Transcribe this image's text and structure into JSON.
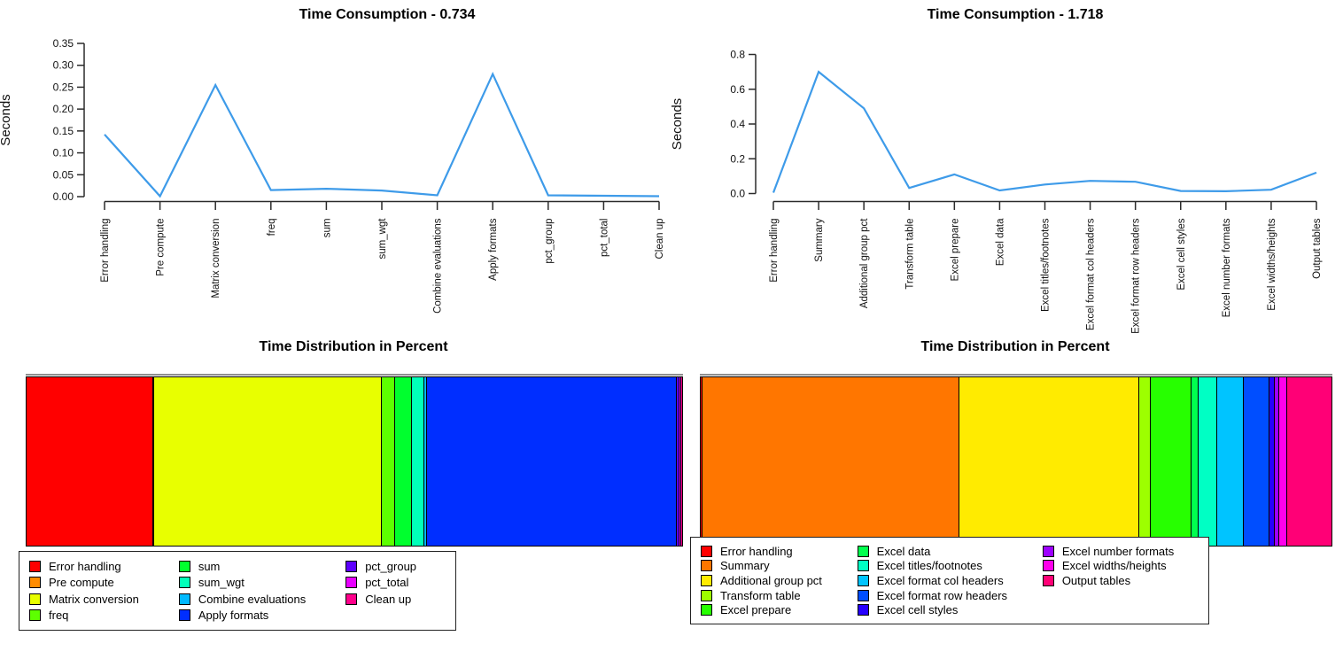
{
  "chart_data": [
    {
      "type": "line",
      "position": "top-left",
      "title": "Time Consumption - 0.734",
      "total_seconds": 0.734,
      "ylabel": "Seconds",
      "line_color": "#3E9BE9",
      "grid": false,
      "ylim": [
        0,
        0.35
      ],
      "yticks": [
        "0.00",
        "0.05",
        "0.10",
        "0.15",
        "0.20",
        "0.25",
        "0.30",
        "0.35"
      ],
      "categories": [
        "Error handling",
        "Pre compute",
        "Matrix conversion",
        "freq",
        "sum",
        "sum_wgt",
        "Combine evaluations",
        "Apply formats",
        "pct_group",
        "pct_total",
        "Clean up"
      ],
      "values": [
        0.142,
        0.001,
        0.255,
        0.015,
        0.018,
        0.014,
        0.003,
        0.28,
        0.003,
        0.002,
        0.001
      ]
    },
    {
      "type": "line",
      "position": "top-right",
      "title": "Time Consumption - 1.718",
      "total_seconds": 1.718,
      "ylabel": "Seconds",
      "line_color": "#3E9BE9",
      "grid": false,
      "ylim": [
        0,
        0.8
      ],
      "yticks": [
        "0.0",
        "0.2",
        "0.4",
        "0.6",
        "0.8"
      ],
      "categories": [
        "Error handling",
        "Summary",
        "Additional group pct",
        "Transform table",
        "Excel prepare",
        "Excel data",
        "Excel titles/footnotes",
        "Excel format col headers",
        "Excel format row headers",
        "Excel cell styles",
        "Excel number formats",
        "Excel widths/heights",
        "Output tables"
      ],
      "values": [
        0.005,
        0.7,
        0.49,
        0.032,
        0.11,
        0.018,
        0.052,
        0.073,
        0.068,
        0.015,
        0.013,
        0.022,
        0.12
      ]
    },
    {
      "type": "stacked_bar",
      "position": "bottom-left",
      "title": "Time Distribution in Percent",
      "legend_position": "bottom-left",
      "legend_columns": 3,
      "segments": [
        {
          "label": "Error handling",
          "color": "#FF0000",
          "percent": 19.35
        },
        {
          "label": "Pre compute",
          "color": "#FF8B00",
          "percent": 0.14
        },
        {
          "label": "Matrix conversion",
          "color": "#E8FF00",
          "percent": 34.74
        },
        {
          "label": "freq",
          "color": "#5DFF00",
          "percent": 2.04
        },
        {
          "label": "sum",
          "color": "#00FF2E",
          "percent": 2.45
        },
        {
          "label": "sum_wgt",
          "color": "#00FFB9",
          "percent": 1.91
        },
        {
          "label": "Combine evaluations",
          "color": "#00B9FF",
          "percent": 0.41
        },
        {
          "label": "Apply formats",
          "color": "#002EFF",
          "percent": 38.15
        },
        {
          "label": "pct_group",
          "color": "#5D00FF",
          "percent": 0.41
        },
        {
          "label": "pct_total",
          "color": "#E800FF",
          "percent": 0.27
        },
        {
          "label": "Clean up",
          "color": "#FF008B",
          "percent": 0.14
        }
      ]
    },
    {
      "type": "stacked_bar",
      "position": "bottom-right",
      "title": "Time Distribution in Percent",
      "legend_position": "bottom-left-overlapping",
      "legend_columns": 3,
      "segments": [
        {
          "label": "Error handling",
          "color": "#FF0000",
          "percent": 0.29
        },
        {
          "label": "Summary",
          "color": "#FF7600",
          "percent": 40.75
        },
        {
          "label": "Additional group pct",
          "color": "#FFEB00",
          "percent": 28.52
        },
        {
          "label": "Transform table",
          "color": "#9DFF00",
          "percent": 1.86
        },
        {
          "label": "Excel prepare",
          "color": "#27FF00",
          "percent": 6.4
        },
        {
          "label": "Excel data",
          "color": "#00FF4E",
          "percent": 1.05
        },
        {
          "label": "Excel titles/footnotes",
          "color": "#00FFC4",
          "percent": 3.03
        },
        {
          "label": "Excel format col headers",
          "color": "#00C4FF",
          "percent": 4.25
        },
        {
          "label": "Excel format row headers",
          "color": "#004EFF",
          "percent": 3.96
        },
        {
          "label": "Excel cell styles",
          "color": "#2700FF",
          "percent": 0.87
        },
        {
          "label": "Excel number formats",
          "color": "#9D00FF",
          "percent": 0.76
        },
        {
          "label": "Excel widths/heights",
          "color": "#FF00EB",
          "percent": 1.28
        },
        {
          "label": "Output tables",
          "color": "#FF0076",
          "percent": 6.98
        }
      ]
    }
  ]
}
